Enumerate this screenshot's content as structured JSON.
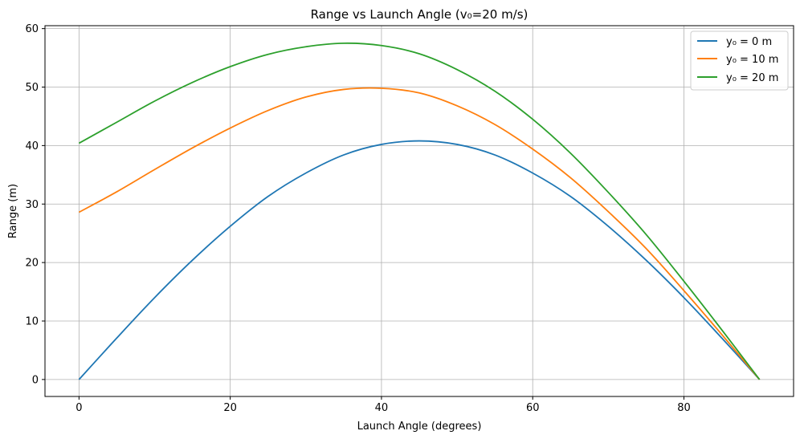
{
  "chart_data": {
    "type": "line",
    "title": "Range vs Launch Angle (v₀=20 m/s)",
    "xlabel": "Launch Angle (degrees)",
    "ylabel": "Range (m)",
    "xlim": [
      -4.5,
      94.5
    ],
    "ylim": [
      -2.9,
      60.5
    ],
    "xticks": [
      0,
      20,
      40,
      60,
      80
    ],
    "yticks": [
      0,
      10,
      20,
      30,
      40,
      50,
      60
    ],
    "grid": true,
    "legend_position": "top-right",
    "x": [
      0,
      5,
      10,
      15,
      20,
      25,
      30,
      35,
      40,
      45,
      50,
      55,
      60,
      65,
      70,
      75,
      80,
      85,
      90
    ],
    "series": [
      {
        "name": "y₀ = 0 m",
        "color": "#1f77b4",
        "values": [
          0.0,
          7.1,
          14.0,
          20.4,
          26.2,
          31.3,
          35.3,
          38.4,
          40.2,
          40.8,
          40.2,
          38.4,
          35.3,
          31.3,
          26.2,
          20.4,
          14.0,
          7.1,
          0.0
        ]
      },
      {
        "name": "y₀ = 10 m",
        "color": "#ff7f0e",
        "values": [
          28.6,
          32.1,
          35.9,
          39.6,
          43.0,
          46.0,
          48.3,
          49.6,
          49.8,
          49.0,
          46.8,
          43.6,
          39.4,
          34.5,
          28.7,
          22.4,
          15.2,
          7.7,
          0.0
        ]
      },
      {
        "name": "y₀ = 20 m",
        "color": "#2ca02c",
        "values": [
          40.4,
          44.0,
          47.6,
          50.8,
          53.5,
          55.6,
          56.9,
          57.5,
          57.1,
          55.7,
          53.0,
          49.3,
          44.5,
          38.7,
          32.0,
          24.8,
          16.8,
          8.5,
          0.0
        ]
      }
    ]
  }
}
